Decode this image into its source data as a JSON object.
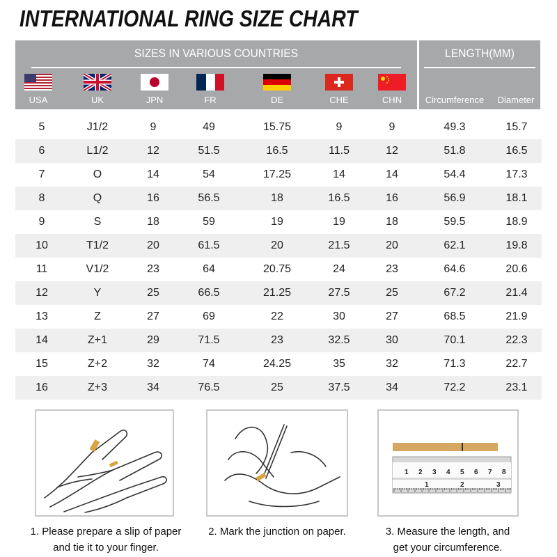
{
  "title": "INTERNATIONAL RING SIZE CHART",
  "header": {
    "sizes_label": "SIZES IN VARIOUS COUNTRIES",
    "length_label": "LENGTH(MM)",
    "countries": [
      {
        "label": "USA",
        "flag": "usa-flag"
      },
      {
        "label": "UK",
        "flag": "uk-flag"
      },
      {
        "label": "JPN",
        "flag": "japan-flag"
      },
      {
        "label": "FR",
        "flag": "france-flag"
      },
      {
        "label": "DE",
        "flag": "germany-flag"
      },
      {
        "label": "CHE",
        "flag": "switzerland-flag"
      },
      {
        "label": "CHN",
        "flag": "china-flag"
      }
    ],
    "circumference": "Circumference",
    "diameter": "Diameter"
  },
  "rows": [
    [
      "5",
      "J1/2",
      "9",
      "49",
      "15.75",
      "9",
      "9",
      "49.3",
      "15.7"
    ],
    [
      "6",
      "L1/2",
      "12",
      "51.5",
      "16.5",
      "11.5",
      "12",
      "51.8",
      "16.5"
    ],
    [
      "7",
      "O",
      "14",
      "54",
      "17.25",
      "14",
      "14",
      "54.4",
      "17.3"
    ],
    [
      "8",
      "Q",
      "16",
      "56.5",
      "18",
      "16.5",
      "16",
      "56.9",
      "18.1"
    ],
    [
      "9",
      "S",
      "18",
      "59",
      "19",
      "19",
      "18",
      "59.5",
      "18.9"
    ],
    [
      "10",
      "T1/2",
      "20",
      "61.5",
      "20",
      "21.5",
      "20",
      "62.1",
      "19.8"
    ],
    [
      "11",
      "V1/2",
      "23",
      "64",
      "20.75",
      "24",
      "23",
      "64.6",
      "20.6"
    ],
    [
      "12",
      "Y",
      "25",
      "66.5",
      "21.25",
      "27.5",
      "25",
      "67.2",
      "21.4"
    ],
    [
      "13",
      "Z",
      "27",
      "69",
      "22",
      "30",
      "27",
      "68.5",
      "21.9"
    ],
    [
      "14",
      "Z+1",
      "29",
      "71.5",
      "23",
      "32.5",
      "30",
      "70.1",
      "22.3"
    ],
    [
      "15",
      "Z+2",
      "32",
      "74",
      "24.25",
      "35",
      "32",
      "71.3",
      "22.7"
    ],
    [
      "16",
      "Z+3",
      "34",
      "76.5",
      "25",
      "37.5",
      "34",
      "72.2",
      "23.1"
    ]
  ],
  "steps": [
    {
      "line1": "1. Please prepare a slip of paper",
      "line2": "and tie it to your finger."
    },
    {
      "line1": "2. Mark the junction on paper.",
      "line2": ""
    },
    {
      "line1": "3. Measure the length, and",
      "line2": "get your circumference."
    }
  ],
  "ruler": {
    "top_marks": [
      "1",
      "2",
      "3",
      "4",
      "5",
      "6",
      "7",
      "8"
    ],
    "bottom_marks": [
      "1",
      "2",
      "3"
    ]
  }
}
